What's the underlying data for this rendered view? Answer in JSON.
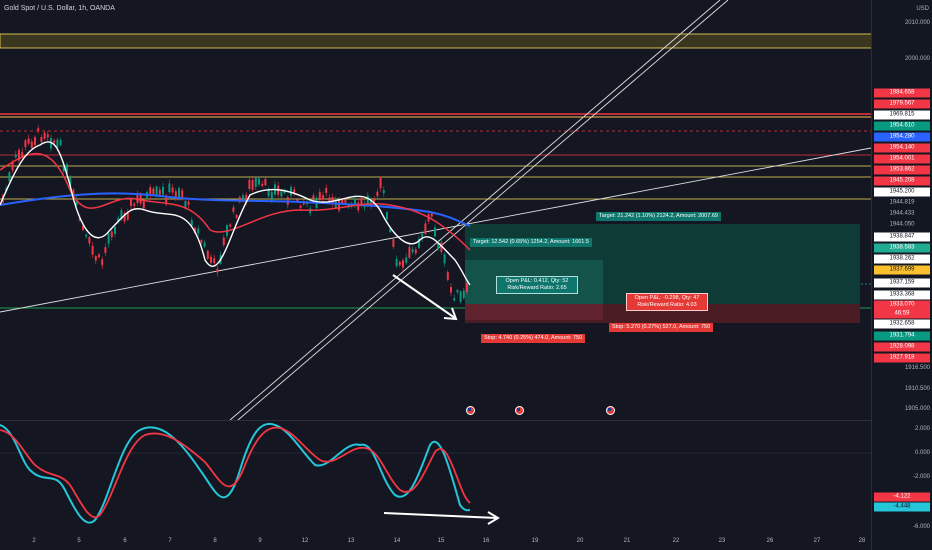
{
  "symbol": {
    "title": "Gold Spot / U.S. Dollar, 1h, OANDA"
  },
  "axis": {
    "currency": "USD",
    "ticks": [
      "2010.000",
      "2000.000",
      "1916.500",
      "1910.500",
      "1905.000"
    ]
  },
  "price_labels": [
    {
      "text": "1984.658",
      "bg": "#f23645",
      "fg": "#ffffff"
    },
    {
      "text": "1979.567",
      "bg": "#f23645",
      "fg": "#ffffff"
    },
    {
      "text": "1969.815",
      "bg": "#ffffff",
      "fg": "#131722"
    },
    {
      "text": "1954.610",
      "bg": "#089981",
      "fg": "#ffffff"
    },
    {
      "text": "1954.280",
      "bg": "#2962ff",
      "fg": "#ffffff"
    },
    {
      "text": "1954.140",
      "bg": "#f23645",
      "fg": "#ffffff"
    },
    {
      "text": "1954.001",
      "bg": "#f23645",
      "fg": "#ffffff"
    },
    {
      "text": "1953.862",
      "bg": "#f23645",
      "fg": "#ffffff"
    },
    {
      "text": "1945.208",
      "bg": "#f23645",
      "fg": "#ffffff"
    },
    {
      "text": "1945.200",
      "bg": "#ffffff",
      "fg": "#131722"
    },
    {
      "text": "1944.819",
      "bg": "#131722",
      "fg": "#b2b5be"
    },
    {
      "text": "1944.433",
      "bg": "#131722",
      "fg": "#b2b5be"
    },
    {
      "text": "1944.050",
      "bg": "#131722",
      "fg": "#b2b5be"
    },
    {
      "text": "1938.847",
      "bg": "#ffffff",
      "fg": "#131722"
    },
    {
      "text": "1938.583",
      "bg": "#22ab94",
      "fg": "#ffffff"
    },
    {
      "text": "1938.262",
      "bg": "#ffffff",
      "fg": "#131722"
    },
    {
      "text": "1937.699",
      "bg": "#fbc02d",
      "fg": "#131722"
    },
    {
      "text": "1937.159",
      "bg": "#ffffff",
      "fg": "#131722"
    },
    {
      "text": "1933.368",
      "bg": "#ffffff",
      "fg": "#131722"
    },
    {
      "text": "1933.070",
      "bg": "#f23645",
      "fg": "#ffffff"
    },
    {
      "text": "46:59",
      "bg": "#f23645",
      "fg": "#ffffff"
    },
    {
      "text": "1932.658",
      "bg": "#ffffff",
      "fg": "#131722"
    },
    {
      "text": "1931.794",
      "bg": "#089981",
      "fg": "#ffffff"
    },
    {
      "text": "1928.098",
      "bg": "#f23645",
      "fg": "#ffffff"
    },
    {
      "text": "1927.918",
      "bg": "#f23645",
      "fg": "#ffffff"
    }
  ],
  "oscillator": {
    "ticks": [
      "2.000",
      "0.000",
      "-2.000",
      "-6.000"
    ],
    "labels": [
      {
        "text": "-4.122",
        "bg": "#f23645",
        "fg": "#ffffff"
      },
      {
        "text": "-4.448",
        "bg": "#26c6da",
        "fg": "#131722"
      }
    ]
  },
  "x_labels": [
    "2",
    "5",
    "6",
    "7",
    "8",
    "9",
    "12",
    "13",
    "14",
    "15",
    "16",
    "19",
    "20",
    "21",
    "22",
    "23",
    "26",
    "27",
    "28"
  ],
  "positions": {
    "long1_target": "Target: 12.542 (0.65%) 1254.2, Amount: 1661.5",
    "long1_open": "Open P&L: 0.412, Qty: 52",
    "long1_rr": "Risk/Reward Ratio: 2.65",
    "long1_stop": "Stop: 4.740 (0.25%) 474.0, Amount: 750",
    "long2_target": "Target: 21.242 (1.10%) 2124.2, Amount: 2007.69",
    "long2_open": "Open P&L: -0.298, Qty: 47",
    "long2_rr": "Risk/Reward Ratio: 4.03",
    "long2_stop": "Stop: 5.270 (0.27%) 527.0, Amount: 750"
  },
  "colors": {
    "bg": "#141722",
    "up": "#089981",
    "down": "#f23645",
    "ma_blue": "#2962ff",
    "ma_red": "#f23645",
    "ma_white": "#ffffff",
    "osc_cyan": "#26c6da",
    "hline_yellow": "#f7e05e",
    "hline_red": "#f23645"
  },
  "icons": [
    "economic-event-flag-icon",
    "arrow-icon"
  ]
}
